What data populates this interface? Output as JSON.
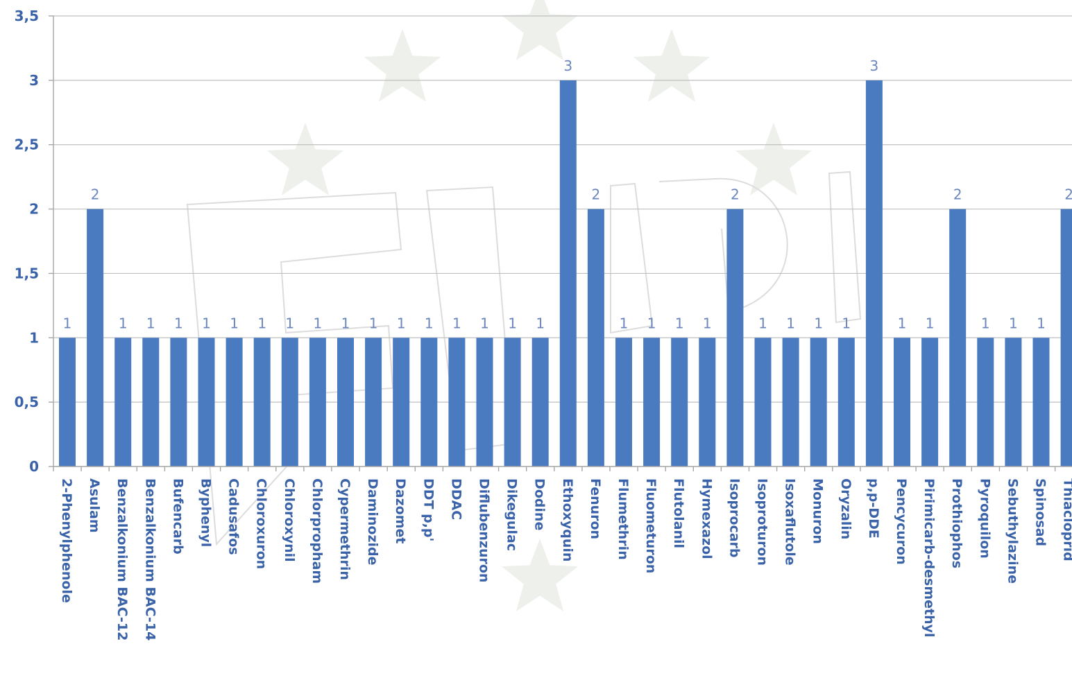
{
  "chart_data": {
    "type": "bar",
    "title": "",
    "xlabel": "",
    "ylabel": "",
    "ylim": [
      0,
      3.5
    ],
    "yticks": [
      "0",
      "0,5",
      "1",
      "1,5",
      "2",
      "2,5",
      "3",
      "3,5"
    ],
    "yticks_values": [
      0,
      0.5,
      1,
      1.5,
      2,
      2.5,
      3,
      3.5
    ],
    "grid": true,
    "legend": "none",
    "bar_color": "#4a7abf",
    "data_labels": true,
    "categories": [
      "2-Phenylphenole",
      "Asulam",
      "Benzalkonium BAC-12",
      "Benzalkonium BAC-14",
      "Bufencarb",
      "Byphenyl",
      "Cadusafos",
      "Chloroxuron",
      "Chloroxynil",
      "Chlorpropham",
      "Cypermethrin",
      "Daminozide",
      "Dazomet",
      "DDT p,p'",
      "DDAC",
      "Diflubenzuron",
      "Dikegulac",
      "Dodine",
      "Ethoxyquin",
      "Fenuron",
      "Flumethrin",
      "Fluometuron",
      "Flutolanil",
      "Hymexazol",
      "Isoprocarb",
      "Isoproturon",
      "Isoxaflutole",
      "Monuron",
      "Oryzalin",
      "p,p-DDE",
      "Pencycuron",
      "Pirimicarb-desmethyl",
      "Prothiophos",
      "Pyroquilon",
      "Sebuthylazine",
      "Spinosad",
      "Thiacloprid"
    ],
    "values": [
      1,
      2,
      1,
      1,
      1,
      1,
      1,
      1,
      1,
      1,
      1,
      1,
      1,
      1,
      1,
      1,
      1,
      1,
      3,
      2,
      1,
      1,
      1,
      1,
      2,
      1,
      1,
      1,
      1,
      3,
      1,
      1,
      2,
      1,
      1,
      1,
      2
    ],
    "value_labels": [
      "1",
      "2",
      "1",
      "1",
      "1",
      "1",
      "1",
      "1",
      "1",
      "1",
      "1",
      "1",
      "1",
      "1",
      "1",
      "1",
      "1",
      "1",
      "3",
      "2",
      "1",
      "1",
      "1",
      "1",
      "2",
      "1",
      "1",
      "1",
      "1",
      "3",
      "1",
      "1",
      "2",
      "1",
      "1",
      "1",
      "2"
    ]
  }
}
